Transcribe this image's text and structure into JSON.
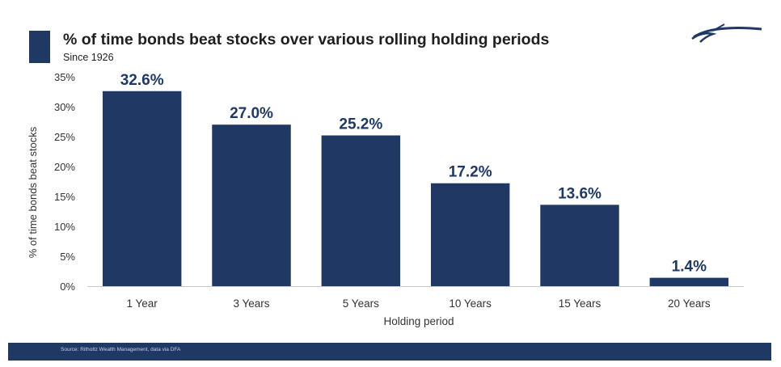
{
  "header": {
    "title": "% of time bonds beat stocks over various rolling holding periods",
    "subtitle": "Since 1926"
  },
  "footer": {
    "source": "Source: Ritholtz Wealth Management, data via DFA"
  },
  "colors": {
    "bar": "#1f3864",
    "label": "#1f3864",
    "axis_text": "#333333",
    "footer_bg": "#1f3864"
  },
  "chart_data": {
    "type": "bar",
    "categories": [
      "1 Year",
      "3 Years",
      "5 Years",
      "10 Years",
      "15 Years",
      "20 Years"
    ],
    "values": [
      32.6,
      27.0,
      25.2,
      17.2,
      13.6,
      1.4
    ],
    "value_labels": [
      "32.6%",
      "27.0%",
      "25.2%",
      "17.2%",
      "13.6%",
      "1.4%"
    ],
    "title": "% of time bonds beat stocks over various rolling holding periods",
    "subtitle": "Since 1926",
    "xlabel": "Holding period",
    "ylabel": "% of time bonds beat stocks",
    "ylim": [
      0,
      35
    ],
    "yticks": [
      0,
      5,
      10,
      15,
      20,
      25,
      30,
      35
    ],
    "ytick_labels": [
      "0%",
      "5%",
      "10%",
      "15%",
      "20%",
      "25%",
      "30%",
      "35%"
    ],
    "grid": false,
    "legend": "none"
  }
}
